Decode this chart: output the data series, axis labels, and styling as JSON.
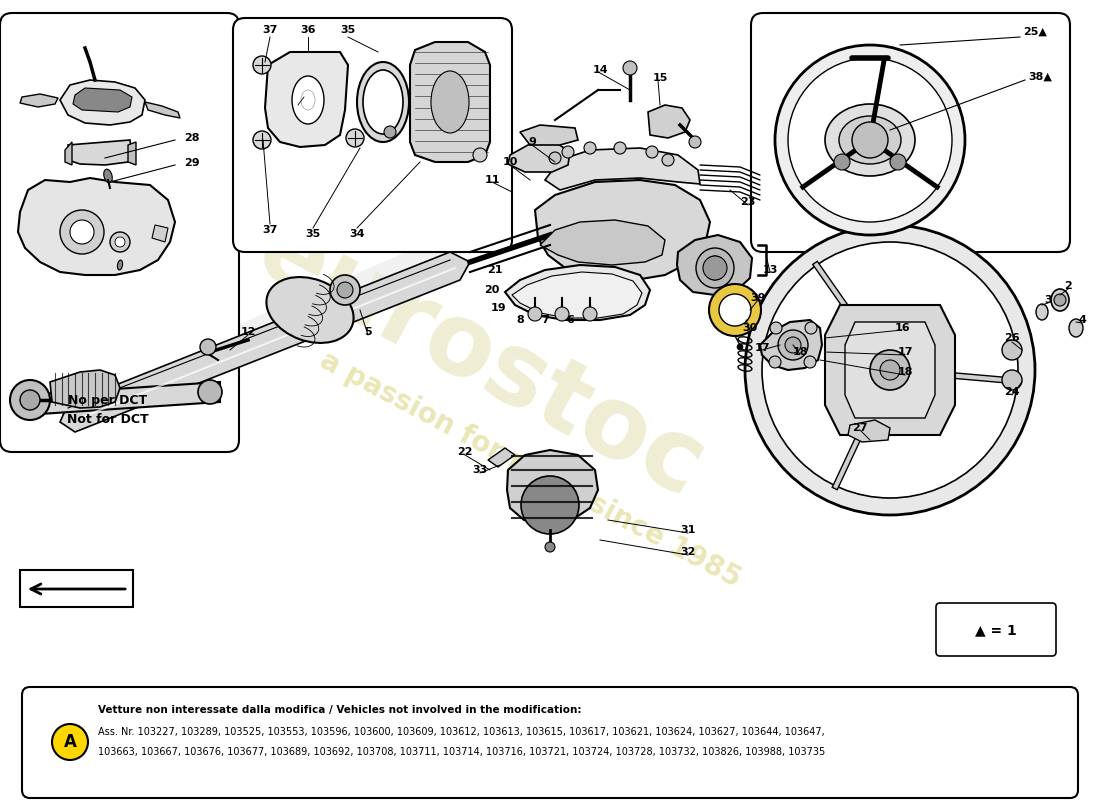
{
  "bg": "#ffffff",
  "border_color": "#000000",
  "bottom_box": {
    "circle_color": "#FFD700",
    "line1_bold": "Vetture non interessate dalla modifica / Vehicles not involved in the modification:",
    "line2": "Ass. Nr. 103227, 103289, 103525, 103553, 103596, 103600, 103609, 103612, 103613, 103615, 103617, 103621, 103624, 103627, 103644, 103647,",
    "line3": "103663, 103667, 103676, 103677, 103689, 103692, 103708, 103711, 103714, 103716, 103721, 103724, 103728, 103732, 103826, 103988, 103735"
  },
  "watermark1": "eurostoc",
  "watermark2": "a passion for parts since 1985",
  "note_text": "No per DCT\nNot for DCT"
}
